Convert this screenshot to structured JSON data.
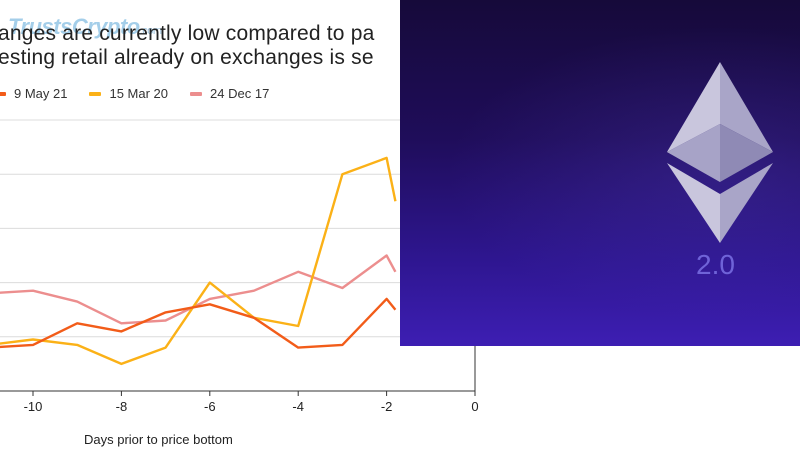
{
  "title": {
    "line1": "anges are currently low compared to pa",
    "line2": "esting retail already on exchanges is se"
  },
  "logo": {
    "brand": "TrustsCrypto",
    "suffix": ".com"
  },
  "chart_data": {
    "type": "line",
    "xlabel": "Days prior to price bottom",
    "ylabel": "",
    "xlim": [
      -11,
      0
    ],
    "ylim": [
      0,
      5
    ],
    "x_ticks": [
      -10,
      -8,
      -6,
      -4,
      -2,
      0
    ],
    "legend_placement": "top",
    "grid": "horizontal",
    "series": [
      {
        "name": "9 May 21",
        "color": "#f25c19",
        "x": [
          -11,
          -10,
          -9,
          -8,
          -7,
          -6,
          -5,
          -4,
          -3,
          -2,
          -1.8
        ],
        "y": [
          0.8,
          0.85,
          1.25,
          1.1,
          1.45,
          1.6,
          1.35,
          0.8,
          0.85,
          1.7,
          1.5
        ]
      },
      {
        "name": "15 Mar 20",
        "color": "#fbb117",
        "x": [
          -11,
          -10,
          -9,
          -8,
          -7,
          -6,
          -5,
          -4,
          -3,
          -2,
          -1.8
        ],
        "y": [
          0.85,
          0.95,
          0.85,
          0.5,
          0.8,
          2.0,
          1.35,
          1.2,
          4.0,
          4.3,
          3.5
        ]
      },
      {
        "name": "24 Dec 17",
        "color": "#ec8e8e",
        "x": [
          -11,
          -10,
          -9,
          -8,
          -7,
          -6,
          -5,
          -4,
          -3,
          -2,
          -1.8
        ],
        "y": [
          1.8,
          1.85,
          1.65,
          1.25,
          1.3,
          1.7,
          1.85,
          2.2,
          1.9,
          2.5,
          2.2
        ]
      }
    ]
  },
  "overlay": {
    "label": "2.0"
  }
}
